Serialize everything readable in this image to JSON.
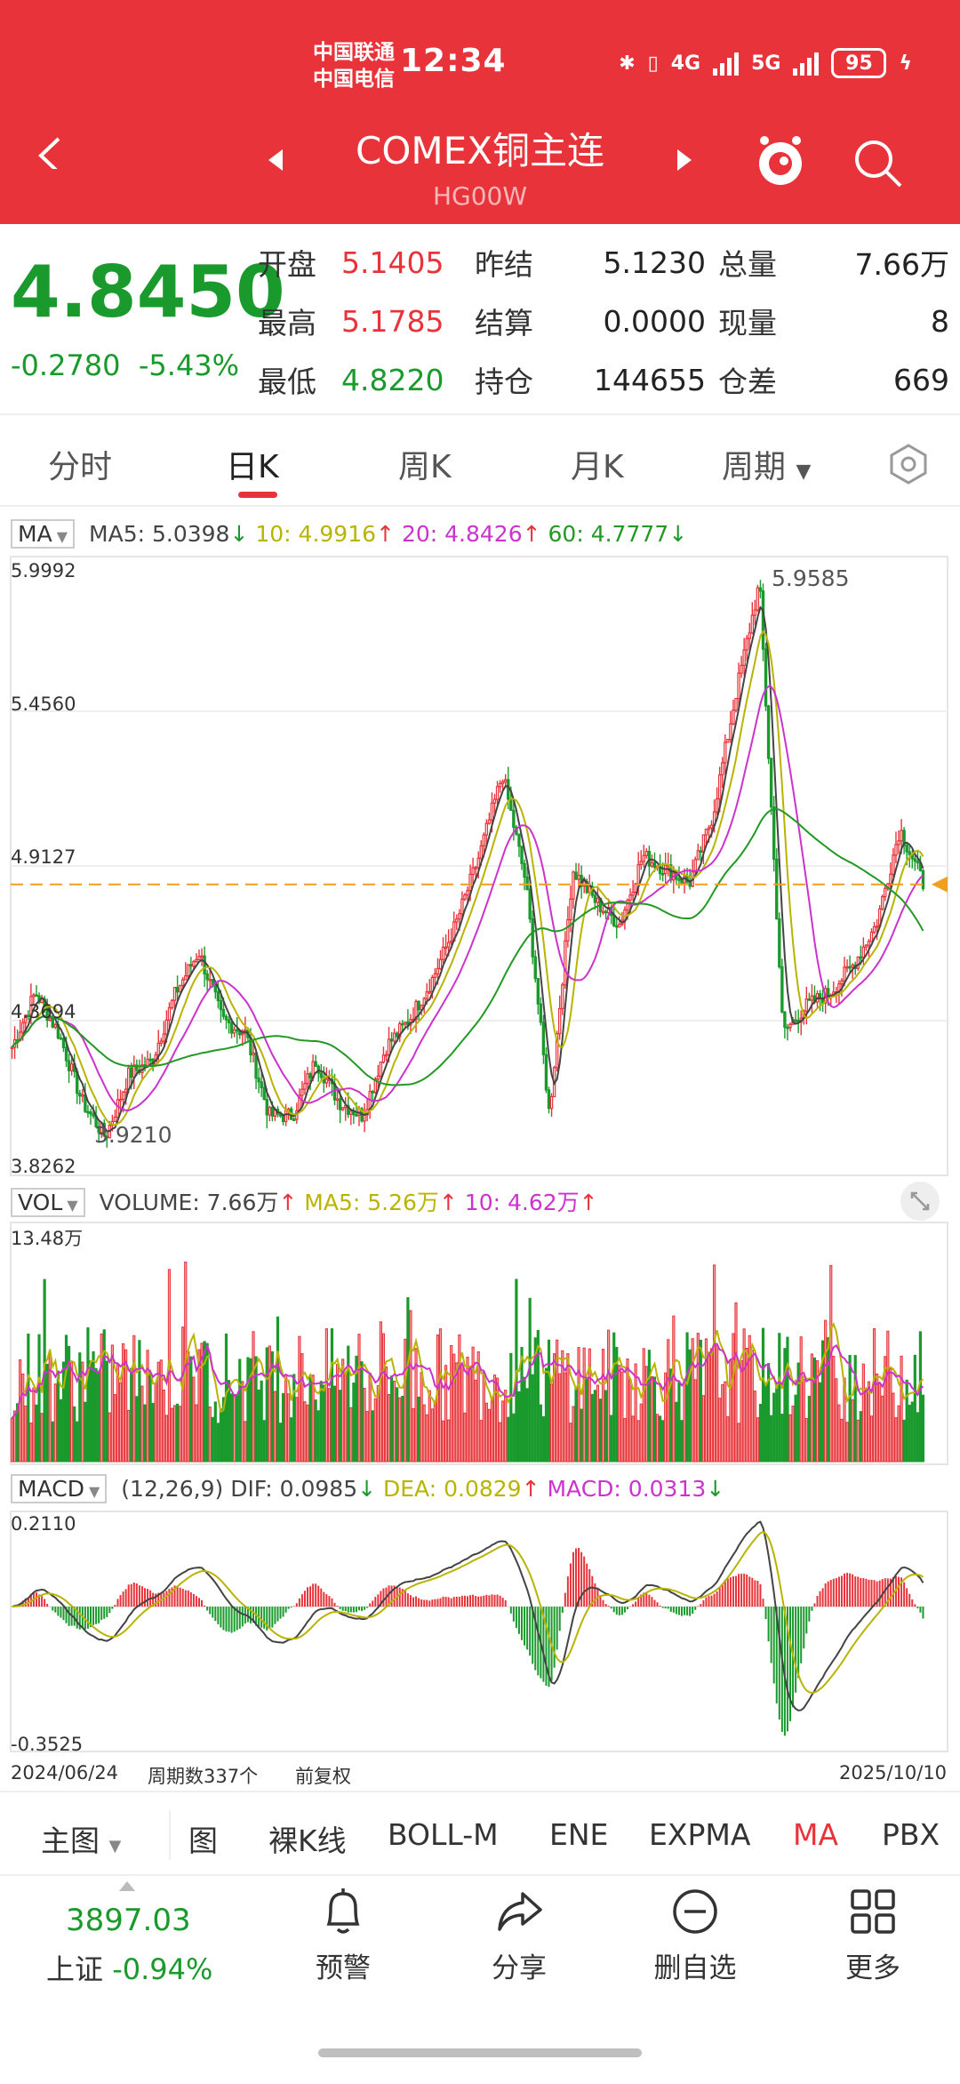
{
  "status": {
    "carrier1": "中国联通",
    "carrier2": "中国电信",
    "time": "12:34",
    "net1": "4G",
    "net2": "5G",
    "battery": "95"
  },
  "header": {
    "title": "COMEX铜主连",
    "code": "HG00W"
  },
  "quote": {
    "price": "4.8450",
    "change": "-0.2780",
    "change_pct": "-5.43%",
    "rows": [
      {
        "l1": "开盘",
        "v1": "5.1405",
        "l2": "昨结",
        "v2": "5.1230",
        "l3": "总量",
        "v3": "7.66万"
      },
      {
        "l1": "最高",
        "v1": "5.1785",
        "l2": "结算",
        "v2": "0.0000",
        "l3": "现量",
        "v3": "8"
      },
      {
        "l1": "最低",
        "v1": "4.8220",
        "l2": "持仓",
        "v2": "144655",
        "l3": "仓差",
        "v3": "669"
      }
    ]
  },
  "tabs": [
    "分时",
    "日K",
    "周K",
    "月K",
    "周期"
  ],
  "main_chart": {
    "selector": "MA",
    "ma5": "MA5: 5.0398",
    "ma10": "10: 4.9916",
    "ma20": "20: 4.8426",
    "ma60": "60: 4.7777",
    "y_labels": [
      "5.9992",
      "5.4560",
      "4.9127",
      "4.3694",
      "3.8262"
    ],
    "high_label": "5.9585",
    "low_label": "3.9210"
  },
  "vol_chart": {
    "selector": "VOL",
    "volume": "VOLUME: 7.66万",
    "ma5": "MA5: 5.26万",
    "ma10": "10: 4.62万",
    "y_max": "13.48万"
  },
  "macd_chart": {
    "selector": "MACD",
    "params": "(12,26,9)",
    "dif": "DIF: 0.0985",
    "dea": "DEA: 0.0829",
    "macd": "MACD: 0.0313",
    "y_max": "0.2110",
    "y_min": "-0.3525"
  },
  "footer_info": {
    "start": "2024/06/24",
    "count": "周期数337个",
    "adj": "前复权",
    "end": "2025/10/10"
  },
  "indicators": [
    "主图",
    "图",
    "裸K线",
    "BOLL-M",
    "ENE",
    "EXPMA",
    "MA",
    "PBX"
  ],
  "bottom": {
    "index_value": "3897.03",
    "index_name": "上证",
    "index_pct": "-0.94%",
    "nav": [
      "预警",
      "分享",
      "删自选",
      "更多"
    ]
  },
  "colors": {
    "brand": "#e8333a",
    "up": "#e8333a",
    "down": "#1a9a2c",
    "ma5": "#444444",
    "ma10": "#b8b400",
    "ma20": "#cc33cc",
    "ma60": "#229922"
  },
  "chart_data": {
    "type": "candlestick",
    "y_range": [
      3.8262,
      5.9992
    ],
    "keypoints": [
      4.25,
      4.45,
      4.3,
      4.05,
      3.92,
      4.15,
      4.2,
      4.45,
      4.6,
      4.35,
      4.3,
      4.0,
      4.0,
      4.2,
      4.05,
      4.0,
      4.25,
      4.35,
      4.5,
      4.7,
      4.95,
      5.25,
      4.85,
      4.0,
      4.9,
      4.78,
      4.7,
      4.95,
      4.9,
      4.85,
      5.1,
      5.55,
      5.95,
      4.3,
      4.4,
      4.45,
      4.55,
      4.7,
      5.05,
      4.85
    ],
    "volume_range": [
      0,
      13.48
    ],
    "macd_range": [
      -0.3525,
      0.211
    ]
  }
}
